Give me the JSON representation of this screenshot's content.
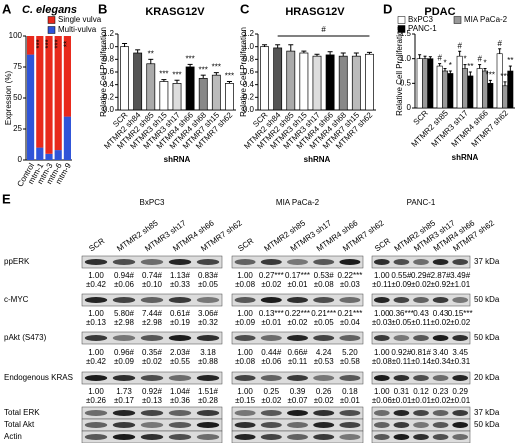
{
  "chart_data": [
    {
      "type": "bar",
      "stacked": true,
      "panel_label": "A",
      "title": "C. elegans",
      "y_label": "Expression (%)",
      "categories": [
        "Control",
        "mtm-1",
        "mtm-3",
        "mtm-6",
        "mtm-9"
      ],
      "series": [
        {
          "name": "Multi-vulva",
          "color": "#2f54d8",
          "values": [
            85,
            10,
            5,
            8,
            35
          ]
        },
        {
          "name": "Single vulva",
          "color": "#e8291c",
          "values": [
            15,
            90,
            95,
            92,
            65
          ]
        }
      ],
      "annotations": [
        null,
        "***",
        "***",
        "***",
        "**"
      ],
      "ylim": [
        0,
        100
      ],
      "yticks": [
        0,
        25,
        50,
        75,
        100
      ],
      "legend": "top"
    },
    {
      "type": "bar",
      "panel_label": "B",
      "title": "KRASG12V",
      "y_label": "Relative Cell Proliferation",
      "x_label": "shRNA",
      "categories": [
        "SCR",
        "MTMR2 sh84",
        "MTMR2 sh85",
        "MTMR3 sh15",
        "MTMR3 sh17",
        "MTMR4 sh66",
        "MTMR4 sh68",
        "MTMR7 sh15",
        "MTMR7 sh62"
      ],
      "values": [
        1.0,
        0.9,
        0.73,
        0.45,
        0.42,
        0.68,
        0.5,
        0.55,
        0.42
      ],
      "errors": [
        0.05,
        0.05,
        0.07,
        0.03,
        0.05,
        0.04,
        0.05,
        0.04,
        0.03
      ],
      "colors": [
        "#ffffff",
        "#555555",
        "#aaaaaa",
        "#ffffff",
        "#dddddd",
        "#000000",
        "#888888",
        "#bbbbbb",
        "#ffffff"
      ],
      "annotations": [
        null,
        null,
        "**",
        "***",
        "***",
        "***",
        "***",
        "***",
        "***"
      ],
      "ylim": [
        0,
        1.2
      ],
      "yticks": [
        {
          "value": 0,
          "label": "0.0"
        },
        0.2,
        0.4,
        0.6,
        0.8,
        {
          "value": 1,
          "label": "1.0"
        },
        1.2
      ]
    },
    {
      "type": "bar",
      "panel_label": "C",
      "title": "HRASG12V",
      "y_label": "Relative Cell Proliferation",
      "x_label": "shRNA",
      "categories": [
        "SCR",
        "MTMR2 sh84",
        "MTMR2 sh85",
        "MTMR3 sh15",
        "MTMR3 sh17",
        "MTMR4 sh66",
        "MTMR4 sh68",
        "MTMR7 sh15",
        "MTMR7 sh62"
      ],
      "values": [
        1.0,
        0.98,
        0.93,
        0.9,
        0.85,
        0.87,
        0.85,
        0.85,
        0.88
      ],
      "errors": [
        0.03,
        0.05,
        0.1,
        0.03,
        0.03,
        0.05,
        0.05,
        0.05,
        0.03
      ],
      "colors": [
        "#ffffff",
        "#555555",
        "#aaaaaa",
        "#ffffff",
        "#dddddd",
        "#000000",
        "#888888",
        "#bbbbbb",
        "#ffffff"
      ],
      "annotation": "#",
      "ylim": [
        0,
        1.2
      ],
      "yticks": [
        {
          "value": 0,
          "label": "0.0"
        },
        0.2,
        0.4,
        0.6,
        0.8,
        {
          "value": 1,
          "label": "1.0"
        },
        1.2
      ]
    },
    {
      "type": "bar",
      "panel_label": "D",
      "title": "PDAC",
      "y_label": "Relative Cell Proliferation",
      "x_label": "shRNA",
      "categories": [
        "SCR",
        "MTMR2 sh85",
        "MTMR3 sh17",
        "MTMR4 sh66",
        "MTMR7 sh62"
      ],
      "series": [
        {
          "name": "BxPC3",
          "color": "#ffffff",
          "values": [
            1.0,
            0.85,
            1.05,
            0.8,
            1.1
          ],
          "errors": [
            0.08,
            0.05,
            0.1,
            0.08,
            0.1
          ],
          "markers": [
            null,
            "#",
            "#",
            "#",
            "#"
          ]
        },
        {
          "name": "MIA PaCa-2",
          "color": "#999999",
          "values": [
            1.0,
            0.75,
            0.8,
            0.75,
            0.45
          ],
          "errors": [
            0.05,
            0.05,
            0.08,
            0.05,
            0.08
          ],
          "markers": [
            null,
            "*",
            "*",
            "*",
            "***"
          ]
        },
        {
          "name": "PANC-1",
          "color": "#000000",
          "values": [
            1.0,
            0.7,
            0.65,
            0.5,
            0.75
          ],
          "errors": [
            0.04,
            0.05,
            0.08,
            0.06,
            0.1
          ],
          "markers": [
            null,
            "*",
            "**",
            "***",
            "**"
          ]
        }
      ],
      "ylim": [
        0,
        1.5
      ],
      "yticks": [
        0,
        0.5,
        {
          "value": 1,
          "label": "1.0"
        },
        1.5
      ],
      "legend": "top"
    }
  ],
  "blot": {
    "panel_label": "E",
    "lanes": [
      "SCR",
      "MTMR2 sh85",
      "MTMR3 sh17",
      "MTMR4 sh66",
      "MTMR7 sh62"
    ],
    "cell_lines": [
      "BxPC3",
      "MIA PaCa-2",
      "PANC-1"
    ],
    "rows": [
      {
        "label": "ppERK",
        "kda": "37 kDa",
        "quant": [
          {
            "mean": [
              "1.00",
              "0.94#",
              "0.74#",
              "1.13#",
              "0.83#"
            ],
            "sd": [
              "±0.42",
              "±0.06",
              "±0.10",
              "±0.33",
              "±0.05"
            ]
          },
          {
            "mean": [
              "1.00",
              "0.27***",
              "0.17***",
              "0.53#",
              "0.22***"
            ],
            "sd": [
              "±0.08",
              "±0.02",
              "±0.01",
              "±0.08",
              "±0.03"
            ]
          },
          {
            "mean": [
              "1.00",
              "0.55#",
              "0.29#",
              "2.87#",
              "3.49#"
            ],
            "sd": [
              "±0.11",
              "±0.09",
              "±0.02",
              "±0.92",
              "±1.01"
            ]
          }
        ]
      },
      {
        "label": "c-MYC",
        "kda": "50 kDa",
        "quant": [
          {
            "mean": [
              "1.00",
              "5.80#",
              "7.44#",
              "0.61#",
              "3.06#"
            ],
            "sd": [
              "±0.13",
              "±2.98",
              "±2.98",
              "±0.19",
              "±0.32"
            ]
          },
          {
            "mean": [
              "1.00",
              "0.13***",
              "0.22***",
              "0.21***",
              "0.21***"
            ],
            "sd": [
              "±0.09",
              "±0.01",
              "±0.02",
              "±0.05",
              "±0.04"
            ]
          },
          {
            "mean": [
              "1.00",
              "0.36***",
              "0.43",
              "0.43",
              "0.15***"
            ],
            "sd": [
              "±0.03",
              "±0.05",
              "±0.11",
              "±0.02",
              "±0.02"
            ]
          }
        ]
      },
      {
        "label": "pAkt (S473)",
        "kda": "50 kDa",
        "quant": [
          {
            "mean": [
              "1.00",
              "0.96#",
              "0.35#",
              "2.03#",
              "3.18"
            ],
            "sd": [
              "±0.42",
              "±0.09",
              "±0.02",
              "±0.55",
              "±0.88"
            ]
          },
          {
            "mean": [
              "1.00",
              "0.44#",
              "0.66#",
              "4.24",
              "5.20"
            ],
            "sd": [
              "±0.08",
              "±0.06",
              "±0.11",
              "±0.53",
              "±0.58"
            ]
          },
          {
            "mean": [
              "1.00",
              "0.92#",
              "0.81#",
              "3.40",
              "3.45"
            ],
            "sd": [
              "±0.08",
              "±0.11",
              "±0.14",
              "±0.34",
              "±0.31"
            ]
          }
        ]
      },
      {
        "label": "Endogenous KRAS",
        "kda": "20 kDa",
        "quant": [
          {
            "mean": [
              "1.00",
              "1.73",
              "0.92#",
              "1.04#",
              "1.51#"
            ],
            "sd": [
              "±0.26",
              "±0.17",
              "±0.13",
              "±0.36",
              "±0.28"
            ]
          },
          {
            "mean": [
              "1.00",
              "0.25",
              "0.39",
              "0.26",
              "0.18"
            ],
            "sd": [
              "±0.15",
              "±0.02",
              "±0.07",
              "±0.02",
              "±0.01"
            ]
          },
          {
            "mean": [
              "1.00",
              "0.31",
              "0.12",
              "0.23",
              "0.29"
            ],
            "sd": [
              "±0.06",
              "±0.01",
              "±0.01",
              "±0.02",
              "±0.01"
            ]
          }
        ]
      },
      {
        "label": "Total ERK",
        "kda": "37 kDa"
      },
      {
        "label": "Total Akt",
        "kda": "50 kDa"
      },
      {
        "label": "Actin"
      }
    ]
  }
}
